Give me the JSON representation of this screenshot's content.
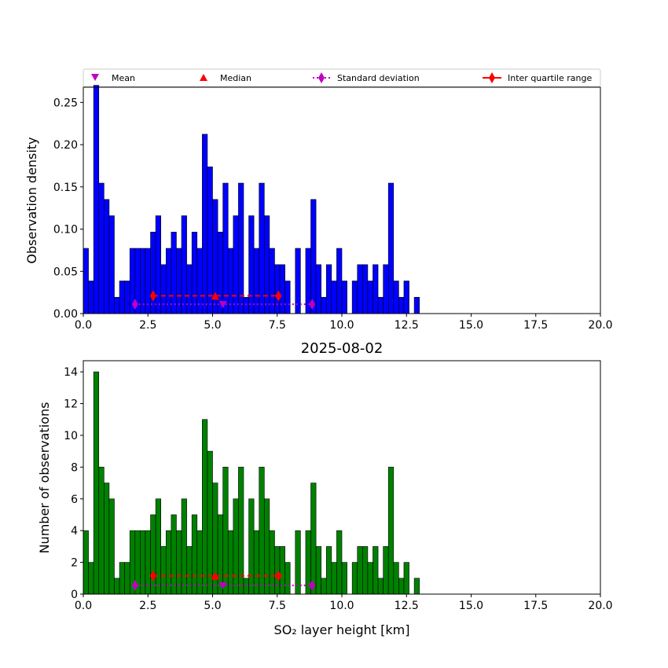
{
  "colors": {
    "density_bar": "#0000ff",
    "count_bar": "#008000",
    "mean": "#bf00bf",
    "median": "#ff0000",
    "std": "#bf00bf",
    "iqr": "#ff0000",
    "edge": "#000000"
  },
  "legend": {
    "mean": "Mean",
    "median": "Median",
    "std": "Standard deviation",
    "iqr": "Inter quartile range"
  },
  "chart_data": [
    {
      "type": "bar",
      "panel": "top",
      "title": "",
      "xlabel": "",
      "ylabel": "Observation density",
      "xlim": [
        0,
        20
      ],
      "ylim": [
        0,
        0.268
      ],
      "xticks": [
        "0.0",
        "2.5",
        "5.0",
        "7.5",
        "10.0",
        "12.5",
        "15.0",
        "17.5",
        "20.0"
      ],
      "xtick_values": [
        0,
        2.5,
        5,
        7.5,
        10,
        12.5,
        15,
        17.5,
        20
      ],
      "yticks": [
        "0.00",
        "0.05",
        "0.10",
        "0.15",
        "0.20",
        "0.25"
      ],
      "ytick_values": [
        0,
        0.05,
        0.1,
        0.15,
        0.2,
        0.25
      ],
      "bin_width": 0.2,
      "bin_start": 0.0,
      "counts": [
        4,
        2,
        14,
        8,
        7,
        6,
        1,
        2,
        2,
        4,
        4,
        4,
        4,
        5,
        6,
        3,
        4,
        5,
        4,
        6,
        3,
        5,
        4,
        11,
        9,
        7,
        5,
        8,
        4,
        6,
        8,
        1,
        6,
        4,
        8,
        6,
        4,
        3,
        3,
        2,
        0,
        4,
        0,
        4,
        7,
        3,
        1,
        3,
        2,
        4,
        2,
        0,
        2,
        3,
        3,
        2,
        3,
        1,
        3,
        8,
        2,
        1,
        2,
        0,
        1
      ],
      "values_note": "density = count / 51.8",
      "density_divisor": 51.8,
      "stats": {
        "mean": 5.4,
        "median": 5.1,
        "std": [
          2.0,
          8.85
        ],
        "iqr": [
          2.7,
          7.55
        ],
        "y": 0.021,
        "std_y": 0.011
      }
    },
    {
      "type": "bar",
      "panel": "bottom",
      "title": "2025-08-02",
      "xlabel": "SO₂ layer height [km]",
      "ylabel": "Number of observations",
      "xlim": [
        0,
        20
      ],
      "ylim": [
        0,
        14.7
      ],
      "xticks": [
        "0.0",
        "2.5",
        "5.0",
        "7.5",
        "10.0",
        "12.5",
        "15.0",
        "17.5",
        "20.0"
      ],
      "xtick_values": [
        0,
        2.5,
        5,
        7.5,
        10,
        12.5,
        15,
        17.5,
        20
      ],
      "yticks": [
        "0",
        "2",
        "4",
        "6",
        "8",
        "10",
        "12",
        "14"
      ],
      "ytick_values": [
        0,
        2,
        4,
        6,
        8,
        10,
        12,
        14
      ],
      "bin_width": 0.2,
      "bin_start": 0.0,
      "counts": [
        4,
        2,
        14,
        8,
        7,
        6,
        1,
        2,
        2,
        4,
        4,
        4,
        4,
        5,
        6,
        3,
        4,
        5,
        4,
        6,
        3,
        5,
        4,
        11,
        9,
        7,
        5,
        8,
        4,
        6,
        8,
        1,
        6,
        4,
        8,
        6,
        4,
        3,
        3,
        2,
        0,
        4,
        0,
        4,
        7,
        3,
        1,
        3,
        2,
        4,
        2,
        0,
        2,
        3,
        3,
        2,
        3,
        1,
        3,
        8,
        2,
        1,
        2,
        0,
        1
      ],
      "stats": {
        "mean": 5.4,
        "median": 5.1,
        "std": [
          2.0,
          8.85
        ],
        "iqr": [
          2.7,
          7.55
        ],
        "y": 1.15,
        "std_y": 0.55
      }
    }
  ]
}
